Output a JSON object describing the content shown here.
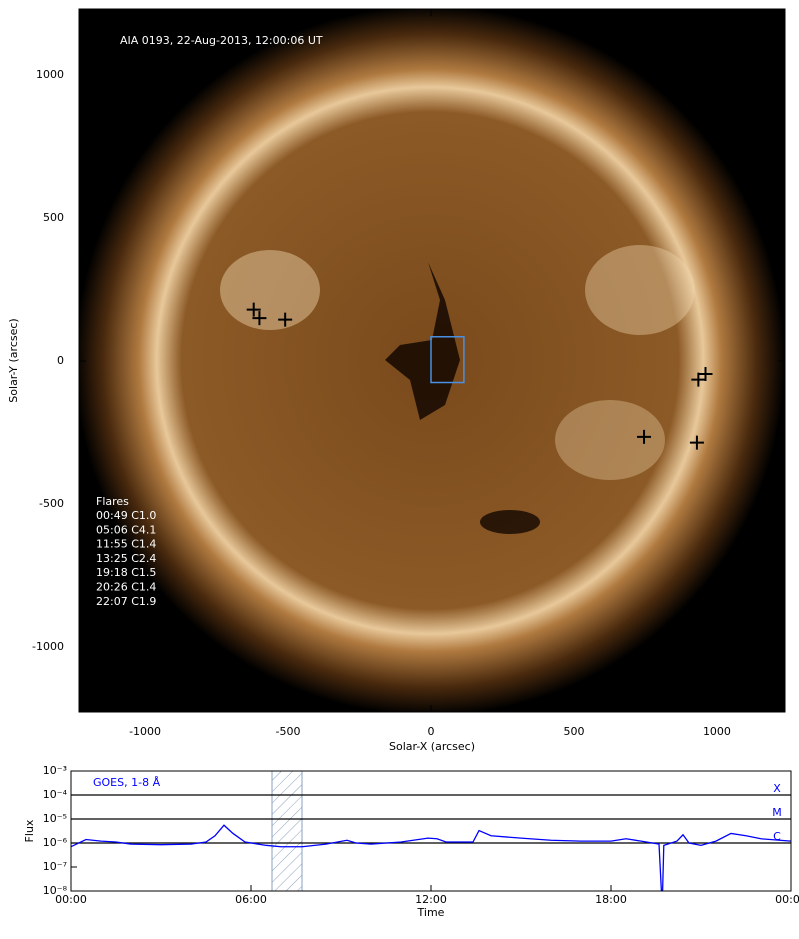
{
  "chart_data": [
    {
      "type": "image",
      "annotation": "AIA 0193, 22-Aug-2013, 12:00:06 UT",
      "x_label": "Solar-X (arcsec)",
      "y_label": "Solar-Y (arcsec)",
      "xlim": [
        -1231,
        1238
      ],
      "ylim": [
        -1227,
        1231
      ],
      "xticks": [
        -1000,
        -500,
        0,
        500,
        1000
      ],
      "yticks": [
        -1000,
        -500,
        0,
        500,
        1000
      ],
      "markers": {
        "x": [
          -620,
          -600,
          -510,
          935,
          960,
          745,
          930
        ],
        "y": [
          180,
          150,
          145,
          -65,
          -45,
          -265,
          -285
        ],
        "color": "#000000"
      },
      "box": {
        "x": [
          0,
          115
        ],
        "y": [
          -75,
          85
        ],
        "color": "#4a90e2"
      },
      "flare_list": {
        "title": "Flares",
        "items": [
          "00:49 C1.0",
          "05:06 C4.1",
          "11:55 C1.4",
          "13:25 C2.4",
          "19:18 C1.5",
          "20:26 C1.4",
          "22:07 C1.9"
        ]
      }
    },
    {
      "type": "line",
      "title": "GOES, 1-8 Å",
      "x_label": "Time",
      "y_label": "Flux",
      "log_y": true,
      "xlim": [
        0,
        24
      ],
      "ylim": [
        1e-08,
        0.001
      ],
      "xticks": [
        {
          "value": 0,
          "label": "00:00"
        },
        {
          "value": 6,
          "label": "06:00"
        },
        {
          "value": 12,
          "label": "12:00"
        },
        {
          "value": 18,
          "label": "18:00"
        },
        {
          "value": 24,
          "label": "00:00"
        }
      ],
      "yticks": [
        {
          "value": 1e-08,
          "label": "10⁻⁸"
        },
        {
          "value": 1e-07,
          "label": "10⁻⁷"
        },
        {
          "value": 1e-06,
          "label": "10⁻⁶"
        },
        {
          "value": 1e-05,
          "label": "10⁻⁵"
        },
        {
          "value": 0.0001,
          "label": "10⁻⁴"
        },
        {
          "value": 0.001,
          "label": "10⁻³"
        }
      ],
      "levels": [
        {
          "value": 0.0001,
          "label": "X"
        },
        {
          "value": 1e-05,
          "label": "M"
        },
        {
          "value": 1e-06,
          "label": "C"
        }
      ],
      "highlight": [
        6.7,
        7.7
      ],
      "x": [
        0,
        0.5,
        1,
        1.5,
        2,
        3,
        4,
        4.5,
        4.8,
        5.1,
        5.4,
        5.8,
        6.5,
        7,
        7.7,
        8.5,
        9.2,
        9.5,
        10,
        11,
        11.9,
        12.2,
        12.5,
        13.4,
        13.6,
        14,
        15,
        16,
        17,
        18,
        18.5,
        19,
        19.6,
        19.68,
        19.72,
        19.76,
        20.2,
        20.4,
        20.6,
        21,
        21.5,
        22,
        22.5,
        23,
        24
      ],
      "series": [
        {
          "color": "#0000ff",
          "values": [
            7e-07,
            1.4e-06,
            1.2e-06,
            1.1e-06,
            9e-07,
            8.5e-07,
            9e-07,
            1.1e-06,
            2e-06,
            5.5e-06,
            2.5e-06,
            1.1e-06,
            8e-07,
            7e-07,
            7e-07,
            9e-07,
            1.3e-06,
            1e-06,
            9e-07,
            1.1e-06,
            1.6e-06,
            1.5e-06,
            1.1e-06,
            1.1e-06,
            3.3e-06,
            2e-06,
            1.6e-06,
            1.3e-06,
            1.2e-06,
            1.2e-06,
            1.5e-06,
            1.2e-06,
            9e-07,
            1e-08,
            1e-08,
            8e-07,
            1.2e-06,
            2.2e-06,
            1e-06,
            8e-07,
            1.2e-06,
            2.5e-06,
            2e-06,
            1.5e-06,
            1.2e-06
          ]
        }
      ]
    }
  ]
}
